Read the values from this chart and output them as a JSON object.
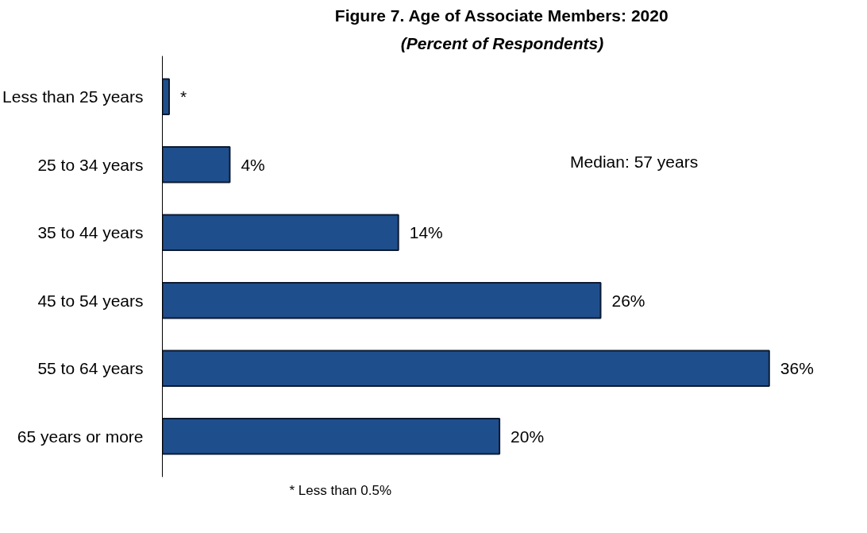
{
  "chart_data": {
    "type": "bar",
    "orientation": "horizontal",
    "title": "Figure 7. Age of Associate Members: 2020",
    "subtitle": "(Percent of Respondents)",
    "categories": [
      "Less than 25 years",
      "25 to 34 years",
      "35 to 44 years",
      "45 to 54 years",
      "55 to 64 years",
      "65 years or more"
    ],
    "values": [
      0.4,
      4,
      14,
      26,
      36,
      20
    ],
    "value_labels": [
      "*",
      "4%",
      "14%",
      "26%",
      "36%",
      "20%"
    ],
    "color": "#1f4e8c",
    "tick_labels": "y",
    "grid": false,
    "annotations": [
      "Median: 57 years",
      "* Less than 0.5%"
    ]
  }
}
